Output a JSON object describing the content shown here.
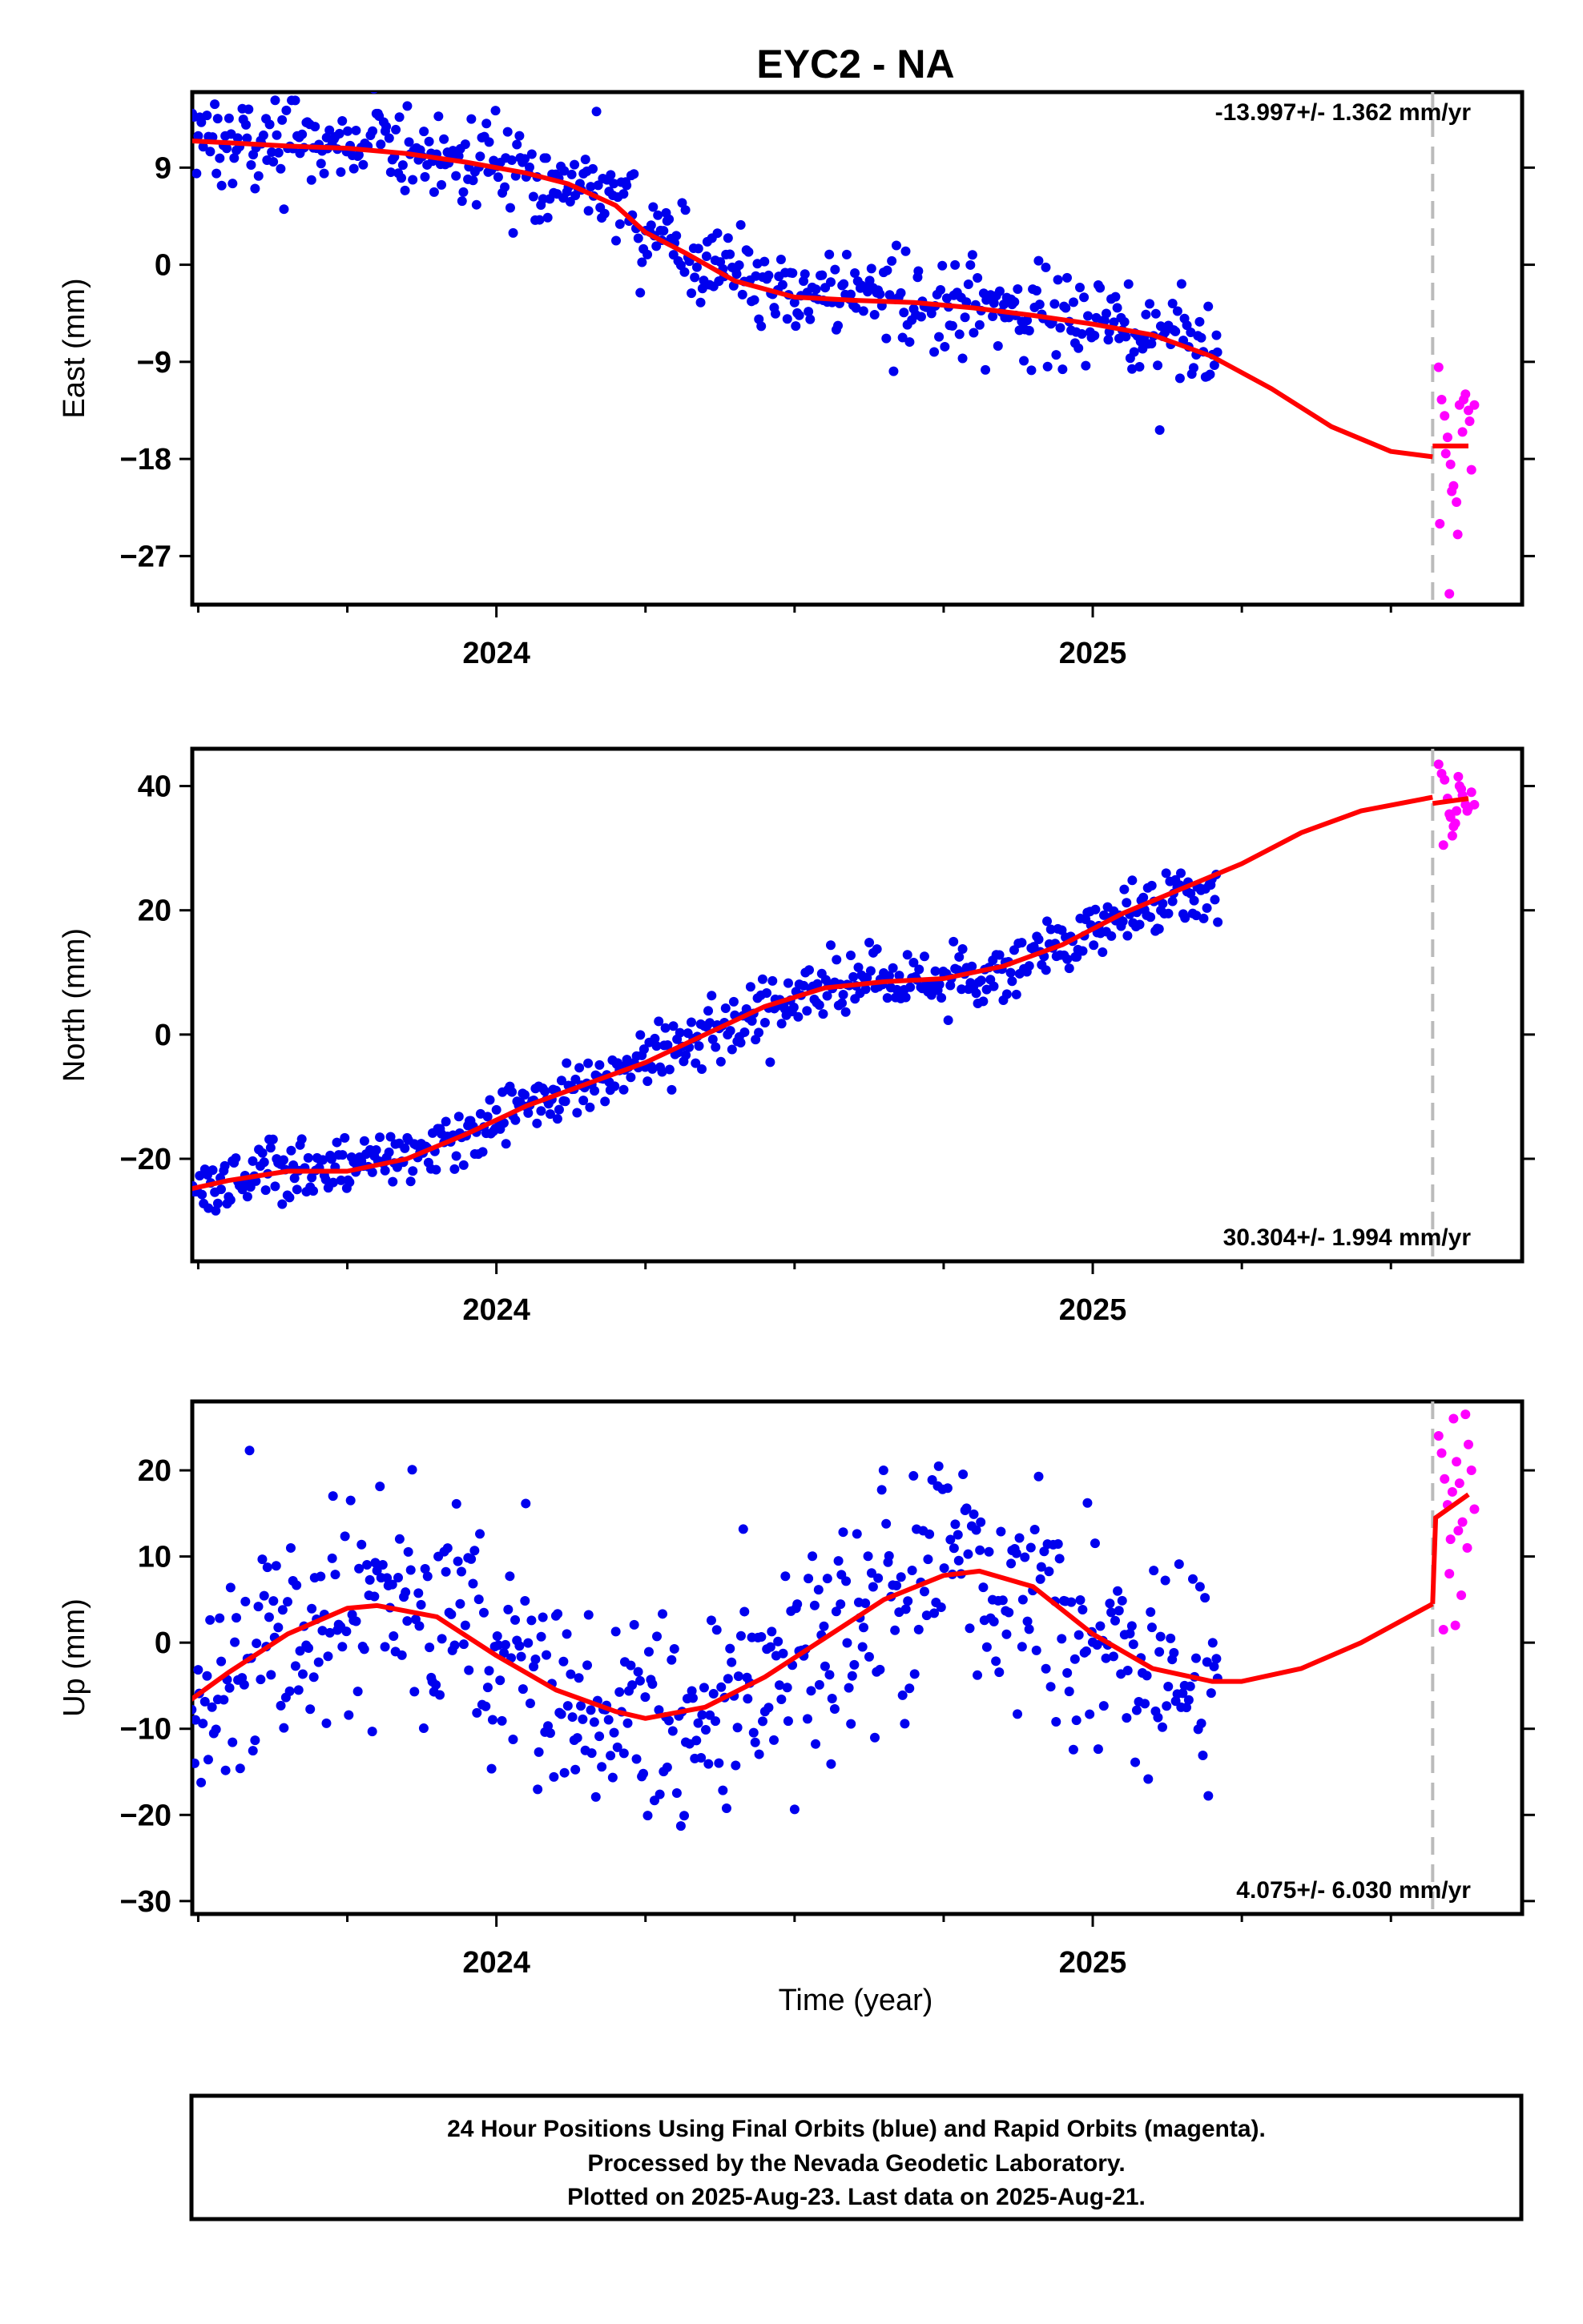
{
  "title": "EYC2 - NA",
  "x_axis_label": "Time (year)",
  "footer": {
    "lines": [
      "24 Hour Positions Using Final Orbits (blue) and Rapid Orbits (magenta).",
      "Processed by the Nevada Geodetic Laboratory.",
      "Plotted on 2025-Aug-23. Last data on 2025-Aug-21."
    ]
  },
  "colors": {
    "final_orbits": "#0000ee",
    "rapid_orbits": "#ff00ff",
    "model": "#ff0000",
    "divider": "#bbbbbb"
  },
  "chart_data": [
    {
      "type": "scatter",
      "name": "east",
      "ylabel": "East (mm)",
      "rate_label": "-13.997+/- 1.362 mm/yr",
      "rate_position": "top-right",
      "xlim": [
        2023.49,
        2025.72
      ],
      "ylim": [
        -31.5,
        16.0
      ],
      "x_ticks": [
        2024,
        2025
      ],
      "y_ticks": [
        9,
        0,
        -9,
        -18,
        -27
      ],
      "y_tick_labels": [
        "9",
        "0",
        "−9",
        "−18",
        "−27"
      ],
      "rapid_start": 2025.57,
      "model_curve": {
        "x": [
          2023.48,
          2023.55,
          2023.65,
          2023.75,
          2023.85,
          2023.95,
          2024.05,
          2024.12,
          2024.2,
          2024.25,
          2024.32,
          2024.4,
          2024.5,
          2024.6,
          2024.7,
          2024.8,
          2024.9,
          2025.0,
          2025.1,
          2025.2,
          2025.3,
          2025.4,
          2025.5,
          2025.57
        ],
        "y": [
          11.5,
          11.3,
          11.0,
          10.8,
          10.3,
          9.5,
          8.5,
          7.5,
          5.5,
          3.0,
          1.0,
          -1.5,
          -3.0,
          -3.3,
          -3.5,
          -4.0,
          -4.7,
          -5.5,
          -6.5,
          -8.5,
          -11.5,
          -15.0,
          -17.3,
          -17.8
        ]
      },
      "model_curve_rapid": {
        "x": [
          2025.57,
          2025.63
        ],
        "y": [
          -16.8,
          -16.8
        ]
      },
      "final_orbit_trend": {
        "x": [
          2023.49,
          2023.6,
          2023.7,
          2023.8,
          2023.9,
          2024.0,
          2024.08,
          2024.15,
          2024.22,
          2024.28,
          2024.35,
          2024.45,
          2024.55,
          2024.65,
          2024.75,
          2024.85,
          2024.95,
          2025.05,
          2025.12,
          2025.21
        ],
        "y": [
          11.6,
          11.3,
          11.1,
          10.8,
          10.2,
          9.4,
          8.4,
          7.2,
          5.0,
          2.5,
          0.2,
          -2.2,
          -3.1,
          -3.4,
          -3.6,
          -4.2,
          -5.0,
          -6.0,
          -7.0,
          -8.8
        ]
      },
      "final_orbit_scatter": 2.2,
      "final_orbit_count": 560,
      "rapid_orbits": {
        "x": [
          2025.58,
          2025.585,
          2025.59,
          2025.595,
          2025.6,
          2025.605,
          2025.61,
          2025.615,
          2025.62,
          2025.625,
          2025.63,
          2025.635,
          2025.64,
          2025.582,
          2025.592,
          2025.602,
          2025.612,
          2025.622,
          2025.632,
          2025.598
        ],
        "y": [
          -9.5,
          -12.5,
          -14.0,
          -16.0,
          -18.5,
          -20.5,
          -22.0,
          -13.0,
          -15.5,
          -12.0,
          -13.5,
          -19.0,
          -13.0,
          -24.0,
          -17.5,
          -21.0,
          -25.0,
          -12.5,
          -14.5,
          -30.5
        ]
      }
    },
    {
      "type": "scatter",
      "name": "north",
      "ylabel": "North (mm)",
      "rate_label": "30.304+/- 1.994 mm/yr",
      "rate_position": "bottom-right",
      "xlim": [
        2023.49,
        2025.72
      ],
      "ylim": [
        -36.5,
        46.0
      ],
      "x_ticks": [
        2024,
        2025
      ],
      "y_ticks": [
        40,
        20,
        0,
        -20
      ],
      "y_tick_labels": [
        "40",
        "20",
        "0",
        "−20"
      ],
      "rapid_start": 2025.57,
      "model_curve": {
        "x": [
          2023.48,
          2023.55,
          2023.65,
          2023.75,
          2023.85,
          2023.95,
          2024.05,
          2024.15,
          2024.25,
          2024.35,
          2024.45,
          2024.55,
          2024.65,
          2024.75,
          2024.85,
          2024.95,
          2025.05,
          2025.15,
          2025.25,
          2025.35,
          2025.45,
          2025.57
        ],
        "y": [
          -25.0,
          -23.5,
          -22.0,
          -22.0,
          -20.0,
          -16.0,
          -11.5,
          -8.0,
          -4.5,
          0.0,
          4.5,
          7.5,
          8.5,
          9.0,
          11.0,
          14.5,
          19.5,
          23.5,
          27.5,
          32.5,
          36.0,
          38.2
        ]
      },
      "model_curve_rapid": {
        "x": [
          2025.57,
          2025.63
        ],
        "y": [
          37.2,
          38.0
        ]
      },
      "final_orbit_trend": {
        "x": [
          2023.49,
          2023.6,
          2023.7,
          2023.8,
          2023.9,
          2024.0,
          2024.1,
          2024.2,
          2024.3,
          2024.4,
          2024.5,
          2024.6,
          2024.7,
          2024.8,
          2024.9,
          2025.0,
          2025.1,
          2025.21
        ],
        "y": [
          -23.5,
          -22.3,
          -22.0,
          -21.0,
          -18.5,
          -13.8,
          -10.0,
          -6.5,
          -2.5,
          2.2,
          6.5,
          8.5,
          8.5,
          9.3,
          12.5,
          16.5,
          21.5,
          23.0
        ]
      },
      "final_orbit_scatter": 2.6,
      "final_orbit_count": 560,
      "rapid_orbits": {
        "x": [
          2025.58,
          2025.585,
          2025.59,
          2025.595,
          2025.6,
          2025.605,
          2025.61,
          2025.615,
          2025.62,
          2025.625,
          2025.63,
          2025.635,
          2025.64,
          2025.588,
          2025.598,
          2025.608,
          2025.618,
          2025.628,
          2025.603,
          2025.613
        ],
        "y": [
          43.5,
          42.0,
          41.0,
          38.0,
          35.0,
          33.5,
          36.0,
          40.0,
          38.5,
          37.0,
          36.5,
          39.0,
          37.0,
          30.5,
          35.5,
          34.0,
          39.5,
          36.0,
          32.0,
          41.5
        ]
      }
    },
    {
      "type": "scatter",
      "name": "up",
      "ylabel": "Up (mm)",
      "rate_label": "4.075+/- 6.030 mm/yr",
      "rate_position": "bottom-right",
      "xlim": [
        2023.49,
        2025.72
      ],
      "ylim": [
        -31.5,
        28.0
      ],
      "x_ticks": [
        2024,
        2025
      ],
      "y_ticks": [
        20,
        10,
        0,
        -10,
        -20,
        -30
      ],
      "y_tick_labels": [
        "20",
        "10",
        "0",
        "−10",
        "−20",
        "−30"
      ],
      "rapid_start": 2025.57,
      "model_curve": {
        "x": [
          2023.48,
          2023.55,
          2023.65,
          2023.75,
          2023.8,
          2023.9,
          2024.0,
          2024.1,
          2024.2,
          2024.25,
          2024.35,
          2024.45,
          2024.55,
          2024.65,
          2024.75,
          2024.81,
          2024.9,
          2025.0,
          2025.1,
          2025.2,
          2025.25,
          2025.35,
          2025.45,
          2025.57
        ],
        "y": [
          -7.0,
          -3.5,
          1.0,
          4.0,
          4.3,
          3.0,
          -1.5,
          -5.5,
          -8.0,
          -8.8,
          -7.5,
          -4.0,
          0.5,
          5.0,
          7.8,
          8.3,
          6.5,
          1.0,
          -3.0,
          -4.5,
          -4.5,
          -3.0,
          0.0,
          4.5
        ]
      },
      "model_curve_rapid": {
        "x": [
          2025.57,
          2025.575,
          2025.63
        ],
        "y": [
          4.5,
          14.5,
          17.2
        ]
      },
      "final_orbit_trend": {
        "x": [
          2023.49,
          2023.55,
          2023.65,
          2023.75,
          2023.8,
          2023.9,
          2024.0,
          2024.1,
          2024.2,
          2024.25,
          2024.35,
          2024.45,
          2024.55,
          2024.65,
          2024.75,
          2024.81,
          2024.9,
          2025.0,
          2025.1,
          2025.21
        ],
        "y": [
          -7.0,
          -3.5,
          1.0,
          4.0,
          4.3,
          3.0,
          -1.5,
          -5.5,
          -8.0,
          -8.8,
          -7.5,
          -4.0,
          0.5,
          5.0,
          7.8,
          8.3,
          6.5,
          1.0,
          -3.0,
          -4.2
        ]
      },
      "final_orbit_scatter": 6.5,
      "final_orbit_count": 560,
      "rapid_orbits": {
        "x": [
          2025.58,
          2025.585,
          2025.59,
          2025.595,
          2025.6,
          2025.605,
          2025.61,
          2025.615,
          2025.62,
          2025.625,
          2025.63,
          2025.635,
          2025.64,
          2025.588,
          2025.598,
          2025.608,
          2025.618,
          2025.628,
          2025.603,
          2025.613
        ],
        "y": [
          24.0,
          22.0,
          19.0,
          16.0,
          12.0,
          26.0,
          21.0,
          18.5,
          14.0,
          26.5,
          23.0,
          20.0,
          15.5,
          1.5,
          8.0,
          2.0,
          5.5,
          11.0,
          17.5,
          13.0
        ]
      }
    }
  ]
}
